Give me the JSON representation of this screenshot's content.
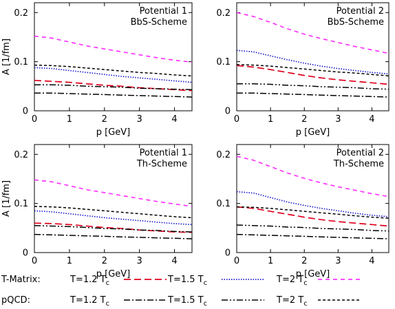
{
  "chart_data": [
    {
      "type": "line",
      "title": [
        "Potential 1",
        "BbS-Scheme"
      ],
      "xlabel": "p [GeV]",
      "ylabel": "A [1/fm]",
      "xlim": [
        0,
        4.5
      ],
      "ylim": [
        0,
        0.22
      ],
      "xticks": [
        "0",
        "1",
        "2",
        "3",
        "4"
      ],
      "yticks": [
        "0",
        "0.1",
        "0.2"
      ],
      "grid": false,
      "x": [
        0,
        0.5,
        1,
        1.5,
        2,
        2.5,
        3,
        3.5,
        4,
        4.5
      ],
      "series": [
        {
          "group": "T-Matrix",
          "name": "T=1.2 T_c",
          "values": [
            0.062,
            0.06,
            0.058,
            0.055,
            0.052,
            0.05,
            0.047,
            0.045,
            0.043,
            0.041
          ]
        },
        {
          "group": "T-Matrix",
          "name": "T=1.5 T_c",
          "values": [
            0.088,
            0.086,
            0.082,
            0.078,
            0.074,
            0.07,
            0.067,
            0.064,
            0.061,
            0.058
          ]
        },
        {
          "group": "T-Matrix",
          "name": "T=2 T_c",
          "values": [
            0.152,
            0.148,
            0.14,
            0.132,
            0.126,
            0.12,
            0.114,
            0.108,
            0.103,
            0.099
          ]
        },
        {
          "group": "pQCD",
          "name": "T=1.2 T_c",
          "values": [
            0.036,
            0.036,
            0.035,
            0.034,
            0.033,
            0.032,
            0.031,
            0.03,
            0.029,
            0.028
          ]
        },
        {
          "group": "pQCD",
          "name": "T=1.5 T_c",
          "values": [
            0.053,
            0.053,
            0.052,
            0.05,
            0.049,
            0.048,
            0.046,
            0.045,
            0.044,
            0.043
          ]
        },
        {
          "group": "pQCD",
          "name": "T=2 T_c",
          "values": [
            0.093,
            0.092,
            0.09,
            0.087,
            0.084,
            0.081,
            0.078,
            0.076,
            0.073,
            0.071
          ]
        }
      ]
    },
    {
      "type": "line",
      "title": [
        "Potential 2",
        "BbS-Scheme"
      ],
      "xlabel": "p [GeV]",
      "ylabel": "",
      "xlim": [
        0,
        4.5
      ],
      "ylim": [
        0,
        0.22
      ],
      "xticks": [
        "0",
        "1",
        "2",
        "3",
        "4"
      ],
      "yticks": [
        "0",
        "0.1",
        "0.2"
      ],
      "grid": false,
      "x": [
        0,
        0.5,
        1,
        1.5,
        2,
        2.5,
        3,
        3.5,
        4,
        4.5
      ],
      "series": [
        {
          "group": "T-Matrix",
          "name": "T=1.2 T_c",
          "values": [
            0.092,
            0.089,
            0.084,
            0.078,
            0.072,
            0.067,
            0.063,
            0.06,
            0.057,
            0.054
          ]
        },
        {
          "group": "T-Matrix",
          "name": "T=1.5 T_c",
          "values": [
            0.123,
            0.12,
            0.112,
            0.104,
            0.097,
            0.091,
            0.086,
            0.082,
            0.078,
            0.075
          ]
        },
        {
          "group": "T-Matrix",
          "name": "T=2 T_c",
          "values": [
            0.2,
            0.192,
            0.18,
            0.167,
            0.156,
            0.147,
            0.139,
            0.131,
            0.124,
            0.117
          ]
        },
        {
          "group": "pQCD",
          "name": "T=1.2 T_c",
          "values": [
            0.036,
            0.036,
            0.035,
            0.034,
            0.033,
            0.032,
            0.031,
            0.03,
            0.029,
            0.028
          ]
        },
        {
          "group": "pQCD",
          "name": "T=1.5 T_c",
          "values": [
            0.055,
            0.055,
            0.054,
            0.052,
            0.051,
            0.049,
            0.048,
            0.047,
            0.045,
            0.044
          ]
        },
        {
          "group": "pQCD",
          "name": "T=2 T_c",
          "values": [
            0.094,
            0.093,
            0.091,
            0.088,
            0.085,
            0.082,
            0.079,
            0.077,
            0.074,
            0.071
          ]
        }
      ]
    },
    {
      "type": "line",
      "title": [
        "Potential 1",
        "Th-Scheme"
      ],
      "xlabel": "p [GeV]",
      "ylabel": "A [1/fm]",
      "xlim": [
        0,
        4.5
      ],
      "ylim": [
        0,
        0.22
      ],
      "xticks": [
        "0",
        "1",
        "2",
        "3",
        "4"
      ],
      "yticks": [
        "0",
        "0.1",
        "0.2"
      ],
      "grid": false,
      "x": [
        0,
        0.5,
        1,
        1.5,
        2,
        2.5,
        3,
        3.5,
        4,
        4.5
      ],
      "series": [
        {
          "group": "T-Matrix",
          "name": "T=1.2 T_c",
          "values": [
            0.06,
            0.059,
            0.057,
            0.054,
            0.051,
            0.049,
            0.046,
            0.044,
            0.042,
            0.041
          ]
        },
        {
          "group": "T-Matrix",
          "name": "T=1.5 T_c",
          "values": [
            0.085,
            0.083,
            0.079,
            0.075,
            0.071,
            0.068,
            0.065,
            0.062,
            0.059,
            0.057
          ]
        },
        {
          "group": "T-Matrix",
          "name": "T=2 T_c",
          "values": [
            0.148,
            0.144,
            0.136,
            0.128,
            0.122,
            0.116,
            0.11,
            0.104,
            0.099,
            0.094
          ]
        },
        {
          "group": "pQCD",
          "name": "T=1.2 T_c",
          "values": [
            0.037,
            0.036,
            0.035,
            0.034,
            0.033,
            0.032,
            0.031,
            0.03,
            0.029,
            0.028
          ]
        },
        {
          "group": "pQCD",
          "name": "T=1.5 T_c",
          "values": [
            0.055,
            0.054,
            0.053,
            0.051,
            0.049,
            0.048,
            0.046,
            0.045,
            0.043,
            0.042
          ]
        },
        {
          "group": "pQCD",
          "name": "T=2 T_c",
          "values": [
            0.094,
            0.093,
            0.091,
            0.088,
            0.085,
            0.082,
            0.079,
            0.076,
            0.073,
            0.071
          ]
        }
      ]
    },
    {
      "type": "line",
      "title": [
        "Potential 2",
        "Th-Scheme"
      ],
      "xlabel": "p [GeV]",
      "ylabel": "",
      "xlim": [
        0,
        4.5
      ],
      "ylim": [
        0,
        0.22
      ],
      "xticks": [
        "0",
        "1",
        "2",
        "3",
        "4"
      ],
      "yticks": [
        "0",
        "0.1",
        "0.2"
      ],
      "grid": false,
      "x": [
        0,
        0.5,
        1,
        1.5,
        2,
        2.5,
        3,
        3.5,
        4,
        4.5
      ],
      "series": [
        {
          "group": "T-Matrix",
          "name": "T=1.2 T_c",
          "values": [
            0.093,
            0.09,
            0.084,
            0.078,
            0.072,
            0.067,
            0.063,
            0.06,
            0.057,
            0.054
          ]
        },
        {
          "group": "T-Matrix",
          "name": "T=1.5 T_c",
          "values": [
            0.124,
            0.121,
            0.112,
            0.103,
            0.096,
            0.09,
            0.085,
            0.08,
            0.076,
            0.073
          ]
        },
        {
          "group": "T-Matrix",
          "name": "T=2 T_c",
          "values": [
            0.196,
            0.188,
            0.175,
            0.162,
            0.151,
            0.142,
            0.134,
            0.127,
            0.12,
            0.114
          ]
        },
        {
          "group": "pQCD",
          "name": "T=1.2 T_c",
          "values": [
            0.037,
            0.036,
            0.035,
            0.034,
            0.033,
            0.032,
            0.031,
            0.03,
            0.029,
            0.028
          ]
        },
        {
          "group": "pQCD",
          "name": "T=1.5 T_c",
          "values": [
            0.056,
            0.055,
            0.054,
            0.052,
            0.051,
            0.049,
            0.048,
            0.047,
            0.045,
            0.044
          ]
        },
        {
          "group": "pQCD",
          "name": "T=2 T_c",
          "values": [
            0.093,
            0.092,
            0.09,
            0.087,
            0.084,
            0.081,
            0.078,
            0.075,
            0.072,
            0.07
          ]
        }
      ]
    }
  ],
  "legend": {
    "placement": "bottom",
    "groups": [
      {
        "label": "T-Matrix:",
        "entries": [
          {
            "temp": "T=1.2 T",
            "sub": "c",
            "color": "#e0001c",
            "style": "long-dash"
          },
          {
            "temp": "T=1.5 T",
            "sub": "c",
            "color": "#1a1acc",
            "style": "dotted"
          },
          {
            "temp": "T=2 T",
            "sub": "c",
            "color": "#ff33ff",
            "style": "dash"
          }
        ]
      },
      {
        "label": "pQCD:",
        "entries": [
          {
            "temp": "T=1.2 T",
            "sub": "c",
            "color": "#000000",
            "style": "dash-dot"
          },
          {
            "temp": "T=1.5 T",
            "sub": "c",
            "color": "#000000",
            "style": "dash-dot-dot"
          },
          {
            "temp": "T=2 T",
            "sub": "c",
            "color": "#000000",
            "style": "short-dash"
          }
        ]
      }
    ]
  },
  "styles": {
    "T-Matrix": [
      {
        "color": "#e0001c",
        "style": "long-dash"
      },
      {
        "color": "#1a1acc",
        "style": "dotted"
      },
      {
        "color": "#ff33ff",
        "style": "dash"
      }
    ],
    "pQCD": [
      {
        "color": "#000000",
        "style": "dash-dot"
      },
      {
        "color": "#000000",
        "style": "dash-dot-dot"
      },
      {
        "color": "#000000",
        "style": "short-dash"
      }
    ]
  }
}
